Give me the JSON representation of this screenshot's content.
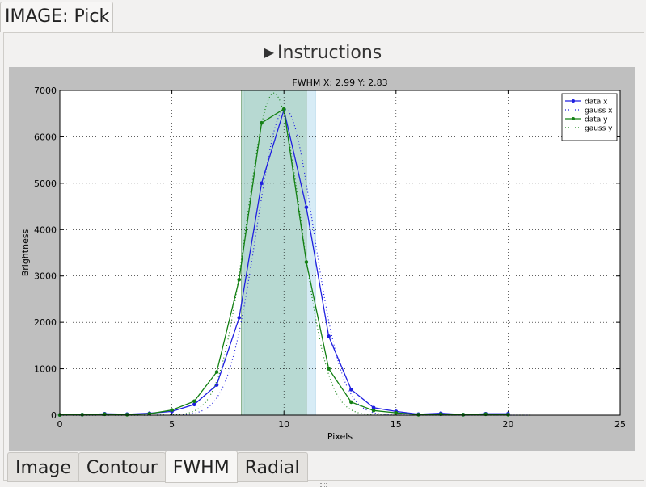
{
  "window_tab": {
    "label": "IMAGE: Pick"
  },
  "instructions": {
    "label": "Instructions",
    "icon": "triangle-right-icon"
  },
  "bottom_tabs": [
    {
      "label": "Image",
      "active": false
    },
    {
      "label": "Contour",
      "active": false
    },
    {
      "label": "FWHM",
      "active": true
    },
    {
      "label": "Radial",
      "active": false
    }
  ],
  "colors": {
    "series_x": "#1f1fe0",
    "series_y": "#138013",
    "span_x": "#d7ecf6",
    "span_y": "#b2d6cb",
    "plot_bg": "#ffffff",
    "frame_bg": "#bfbfbf"
  },
  "chart_data": {
    "type": "line",
    "title": "FWHM X: 2.99  Y: 2.83",
    "xlabel": "Pixels",
    "ylabel": "Brightness",
    "xlim": [
      0,
      25
    ],
    "ylim": [
      0,
      7000
    ],
    "xticks": [
      0,
      5,
      10,
      15,
      20,
      25
    ],
    "yticks": [
      0,
      1000,
      2000,
      3000,
      4000,
      5000,
      6000,
      7000
    ],
    "grid": true,
    "legend_position": "top-right",
    "fwhm_spans": [
      {
        "series": "x",
        "range": [
          8.25,
          11.4
        ]
      },
      {
        "series": "y",
        "range": [
          8.1,
          11.0
        ]
      }
    ],
    "series": [
      {
        "name": "data x",
        "style": "line-dot",
        "color": "#1f1fe0",
        "x": [
          0,
          1,
          2,
          3,
          4,
          5,
          6,
          7,
          8,
          9,
          10,
          11,
          12,
          13,
          14,
          15,
          16,
          17,
          18,
          19,
          20
        ],
        "y": [
          5,
          10,
          30,
          20,
          40,
          80,
          230,
          650,
          2100,
          5000,
          6580,
          4480,
          1700,
          550,
          160,
          80,
          20,
          40,
          10,
          30,
          30
        ]
      },
      {
        "name": "gauss x",
        "style": "dotted",
        "color": "#1f1fe0",
        "gauss": {
          "amp": 6600,
          "mu": 10.05,
          "fwhm": 2.99
        }
      },
      {
        "name": "data y",
        "style": "line-dot",
        "color": "#138013",
        "x": [
          0,
          1,
          2,
          3,
          4,
          5,
          6,
          7,
          8,
          9,
          10,
          11,
          12,
          13,
          14,
          15,
          16,
          17,
          18,
          19,
          20
        ],
        "y": [
          5,
          10,
          20,
          10,
          30,
          110,
          300,
          930,
          2920,
          6300,
          6600,
          3300,
          1000,
          280,
          100,
          50,
          10,
          20,
          10,
          20,
          10
        ]
      },
      {
        "name": "gauss y",
        "style": "dotted",
        "color": "#138013",
        "gauss": {
          "amp": 6950,
          "mu": 9.55,
          "fwhm": 2.83
        }
      }
    ]
  }
}
